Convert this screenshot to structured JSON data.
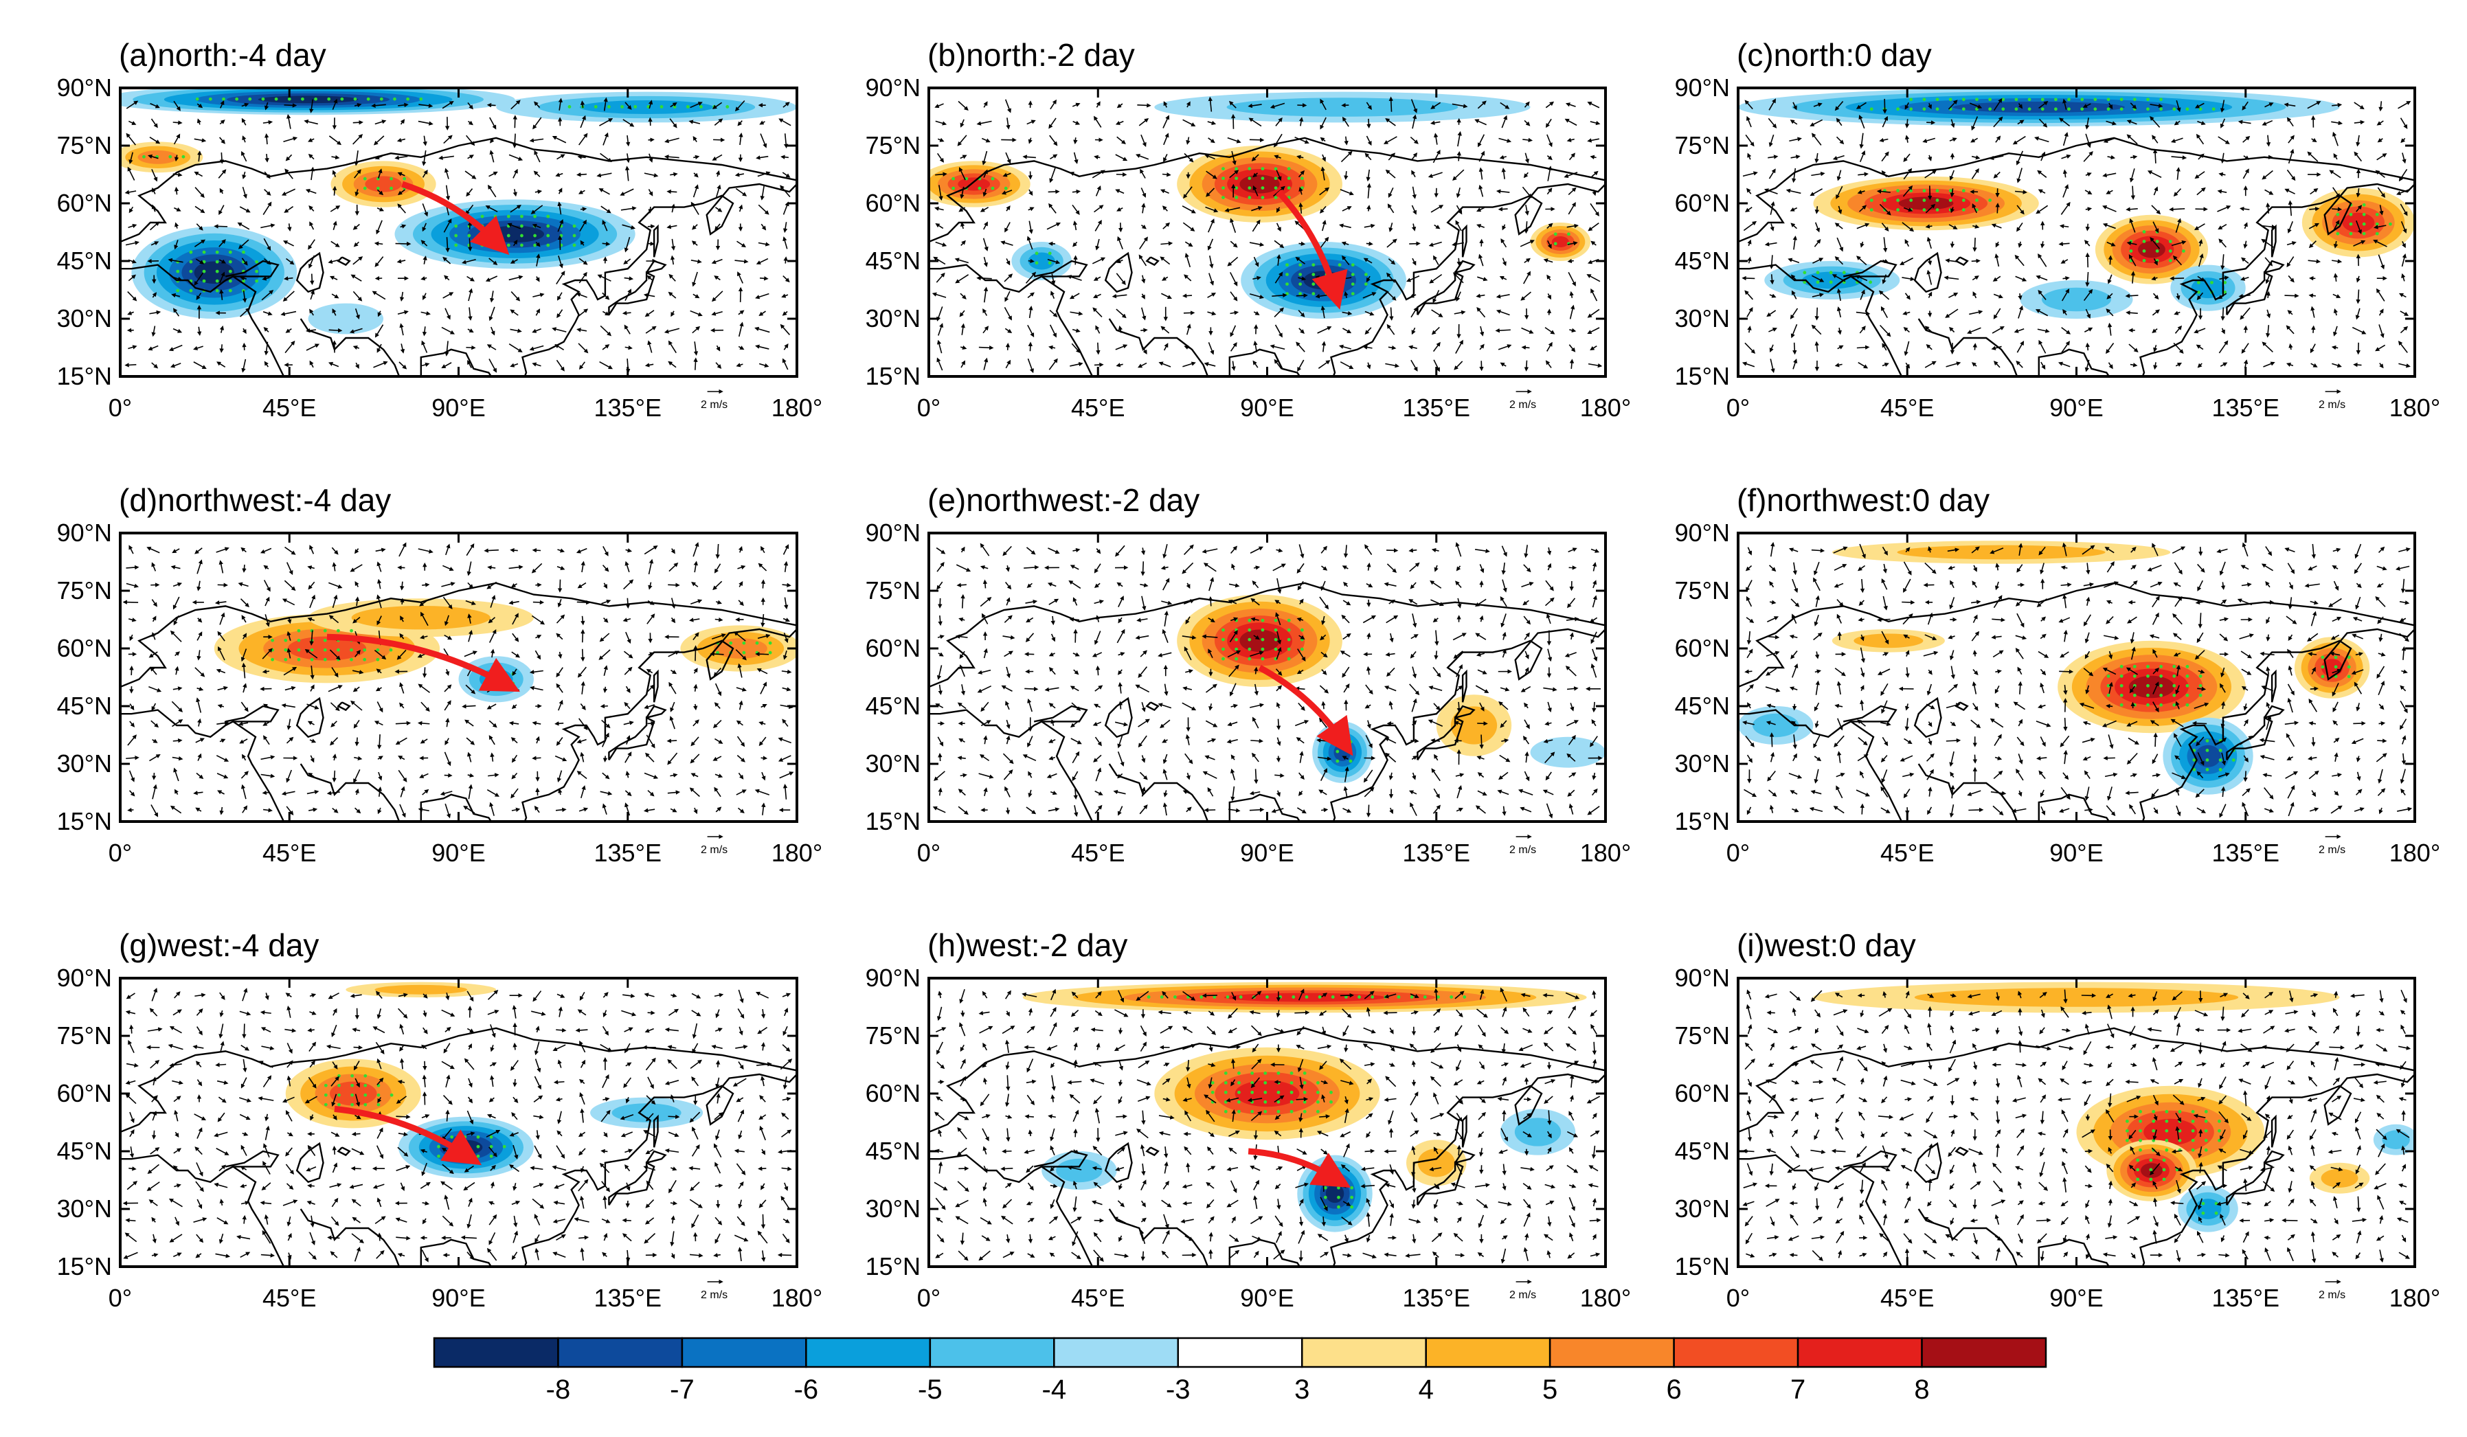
{
  "figure": {
    "description_units": "anomaly composites over Eurasia, lat 15N-90N, lon 0-180"
  },
  "colors": {
    "scale": [
      "#0a2a66",
      "#0d4a9c",
      "#0a72c2",
      "#0a9fdc",
      "#4cc1ea",
      "#9edcf5",
      "#ffffff",
      "#fde08a",
      "#fcb327",
      "#f8862a",
      "#f24e23",
      "#e4201c",
      "#a50f15"
    ],
    "arrow": "#f01e1e",
    "stipple": "#33dd33",
    "coast": "#000000"
  },
  "chart_data": {
    "type": "heatmap",
    "x_axis": {
      "range": [
        0,
        180
      ],
      "ticks": [
        0,
        45,
        90,
        135,
        180
      ],
      "tick_labels": [
        "0°",
        "45°E",
        "90°E",
        "135°E",
        "180°"
      ]
    },
    "y_axis": {
      "range": [
        15,
        90
      ],
      "ticks": [
        15,
        30,
        45,
        60,
        75,
        90
      ],
      "tick_labels": [
        "15°N",
        "30°N",
        "45°N",
        "60°N",
        "75°N",
        "90°N"
      ]
    },
    "reference_vector": "2 m/s",
    "colorbar": {
      "labels": [
        "-8",
        "-7",
        "-6",
        "-5",
        "-4",
        "-3",
        "3",
        "4",
        "5",
        "6",
        "7",
        "8"
      ],
      "levels": [
        -8,
        -7,
        -6,
        -5,
        -4,
        -3,
        3,
        4,
        5,
        6,
        7,
        8
      ]
    },
    "panels": [
      {
        "id": "a",
        "title": "(a)north:-4 day",
        "blobs": [
          [
            25,
            42,
            22,
            12,
            -8
          ],
          [
            50,
            87,
            55,
            4,
            -8
          ],
          [
            105,
            52,
            32,
            9,
            -8
          ],
          [
            70,
            65,
            14,
            6,
            6
          ],
          [
            10,
            72,
            12,
            4,
            5
          ],
          [
            140,
            85,
            40,
            4,
            -5
          ],
          [
            60,
            30,
            10,
            4,
            -3
          ]
        ],
        "arrow": [
          [
            75,
            65
          ],
          [
            100,
            50
          ]
        ]
      },
      {
        "id": "d",
        "title": "(d)northwest:-4 day",
        "blobs": [
          [
            55,
            60,
            30,
            9,
            6
          ],
          [
            100,
            52,
            10,
            6,
            -5
          ],
          [
            165,
            60,
            16,
            6,
            5
          ],
          [
            80,
            68,
            30,
            5,
            4
          ]
        ],
        "arrow": [
          [
            55,
            63
          ],
          [
            102,
            51
          ]
        ]
      },
      {
        "id": "g",
        "title": "(g)west:-4 day",
        "blobs": [
          [
            62,
            60,
            18,
            9,
            6
          ],
          [
            92,
            46,
            18,
            8,
            -8
          ],
          [
            140,
            55,
            15,
            4,
            -4
          ],
          [
            80,
            87,
            20,
            2,
            4
          ]
        ],
        "arrow": [
          [
            57,
            56
          ],
          [
            92,
            44
          ]
        ]
      },
      {
        "id": "b",
        "title": "(b)north:-2 day",
        "blobs": [
          [
            12,
            65,
            15,
            6,
            7
          ],
          [
            88,
            65,
            22,
            10,
            8
          ],
          [
            105,
            40,
            22,
            10,
            -8
          ],
          [
            30,
            45,
            8,
            5,
            -5
          ],
          [
            110,
            85,
            50,
            4,
            -4
          ],
          [
            168,
            50,
            8,
            5,
            7
          ]
        ],
        "arrow": [
          [
            93,
            63
          ],
          [
            108,
            37
          ]
        ]
      },
      {
        "id": "e",
        "title": "(e)northwest:-2 day",
        "blobs": [
          [
            88,
            62,
            22,
            12,
            8
          ],
          [
            110,
            33,
            8,
            8,
            -7
          ],
          [
            145,
            40,
            10,
            8,
            4
          ],
          [
            170,
            33,
            10,
            4,
            -3
          ]
        ],
        "arrow": [
          [
            88,
            55
          ],
          [
            110,
            36
          ]
        ]
      },
      {
        "id": "h",
        "title": "(h)west:-2 day",
        "blobs": [
          [
            100,
            85,
            75,
            4,
            7
          ],
          [
            90,
            60,
            30,
            12,
            7
          ],
          [
            108,
            34,
            10,
            10,
            -8
          ],
          [
            135,
            42,
            8,
            6,
            4
          ],
          [
            162,
            50,
            10,
            6,
            -4
          ],
          [
            40,
            40,
            10,
            5,
            -4
          ]
        ],
        "arrow": [
          [
            85,
            45
          ],
          [
            108,
            38
          ]
        ]
      },
      {
        "id": "c",
        "title": "(c)north:0 day",
        "blobs": [
          [
            80,
            85,
            80,
            5,
            -7
          ],
          [
            50,
            60,
            30,
            7,
            8
          ],
          [
            110,
            48,
            15,
            9,
            8
          ],
          [
            165,
            55,
            15,
            9,
            7
          ],
          [
            25,
            40,
            18,
            5,
            -5
          ],
          [
            90,
            35,
            15,
            5,
            -4
          ],
          [
            125,
            38,
            10,
            6,
            -5
          ]
        ],
        "arrow": null
      },
      {
        "id": "f",
        "title": "(f)northwest:0 day",
        "blobs": [
          [
            110,
            50,
            25,
            12,
            8
          ],
          [
            158,
            55,
            10,
            8,
            7
          ],
          [
            125,
            32,
            12,
            10,
            -7
          ],
          [
            70,
            85,
            45,
            3,
            4
          ],
          [
            10,
            40,
            10,
            5,
            -4
          ],
          [
            40,
            62,
            15,
            3,
            4
          ]
        ],
        "arrow": null
      },
      {
        "id": "i",
        "title": "(i)west:0 day",
        "blobs": [
          [
            115,
            50,
            25,
            12,
            7
          ],
          [
            110,
            40,
            12,
            8,
            8
          ],
          [
            125,
            30,
            8,
            6,
            -5
          ],
          [
            160,
            38,
            8,
            4,
            4
          ],
          [
            175,
            48,
            6,
            4,
            -4
          ],
          [
            90,
            85,
            70,
            4,
            4
          ]
        ],
        "arrow": null
      }
    ]
  }
}
